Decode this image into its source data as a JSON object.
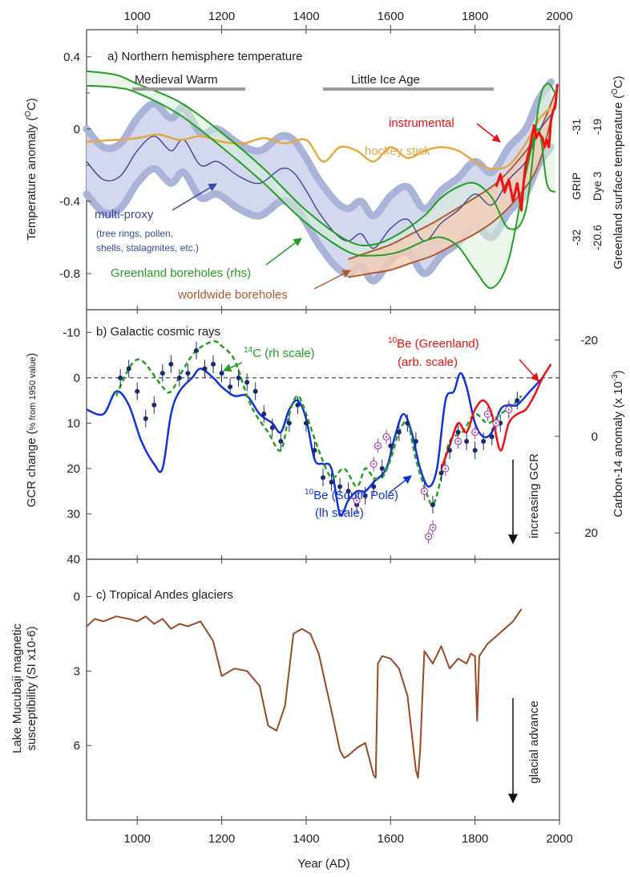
{
  "x_axis": {
    "ticks": [
      1000,
      1200,
      1400,
      1600,
      1800,
      2000
    ],
    "xlim": [
      880,
      2000
    ],
    "label": "Year (AD)"
  },
  "colors": {
    "multiproxy": "#3a4a9a",
    "multiproxy_band_outer": "#aab3d8",
    "multiproxy_band_inner": "#d3d8ee",
    "hockey": "#e8a840",
    "greenland": "#22a022",
    "worldwide": "#b05a30",
    "instrumental": "#ee1111",
    "be10_south_pole": "#1133dd",
    "c14": "#22a022",
    "be10_greenland": "#ee1111",
    "gcr_points": "#1a2a6a",
    "andes": "#9a4a22",
    "circle_points": "#aa44aa"
  },
  "chart_data": [
    {
      "type": "line",
      "title": "a) Northern hemisphere temperature",
      "ylabel": "Temperature anomaly (°C)",
      "ylabel_parts": [
        "Temperature anomaly (",
        "O",
        "C)"
      ],
      "ylim": [
        -1.0,
        0.55
      ],
      "yticks": [
        "0.4",
        "0",
        "-0.4",
        "-0.8"
      ],
      "right_label": "Greenland surface temperature (°C)",
      "right_label_parts": [
        "Greenland surface temperature (",
        "O",
        "C)"
      ],
      "right_ticks": {
        "grip": {
          "label": "GRIP",
          "values": [
            "-31",
            "-32"
          ]
        },
        "dye3": {
          "label": "Dye 3",
          "values": [
            "-19",
            "-20.6"
          ]
        }
      },
      "periods": [
        {
          "label": "Medieval Warm",
          "start": 1000,
          "end": 1270
        },
        {
          "label": "Little Ice Age",
          "start": 1450,
          "end": 1850
        }
      ],
      "annotations": {
        "instrumental": "instrumental",
        "hockey": "hockey stick",
        "multiproxy": [
          "multi-proxy",
          "(tree rings, pollen,",
          "shells, stalagmites, etc.)"
        ],
        "greenland": "Greenland boreholes (rhs)",
        "worldwide": "worldwide boreholes"
      },
      "series": [
        {
          "name": "multi-proxy",
          "x": [
            880,
            920,
            960,
            1000,
            1040,
            1080,
            1110,
            1150,
            1190,
            1240,
            1290,
            1340,
            1370,
            1400,
            1430,
            1470,
            1500,
            1530,
            1560,
            1600,
            1640,
            1680,
            1720,
            1760,
            1800,
            1840,
            1880,
            1920,
            1950,
            1980
          ],
          "y": [
            -0.18,
            -0.28,
            -0.26,
            -0.12,
            -0.04,
            -0.12,
            -0.06,
            -0.2,
            -0.18,
            -0.26,
            -0.3,
            -0.22,
            -0.24,
            -0.34,
            -0.46,
            -0.58,
            -0.62,
            -0.58,
            -0.66,
            -0.55,
            -0.5,
            -0.62,
            -0.52,
            -0.45,
            -0.36,
            -0.42,
            -0.28,
            -0.18,
            -0.02,
            0.08
          ]
        },
        {
          "name": "multi-proxy band half-width",
          "y": [
            0.18
          ]
        },
        {
          "name": "hockey stick",
          "x": [
            880,
            950,
            1000,
            1050,
            1100,
            1150,
            1200,
            1250,
            1300,
            1350,
            1400,
            1440,
            1480,
            1520,
            1560,
            1600,
            1640,
            1680,
            1720,
            1760,
            1800,
            1840,
            1880,
            1920,
            1950,
            1980
          ],
          "y": [
            -0.07,
            -0.06,
            -0.05,
            -0.03,
            -0.06,
            -0.04,
            -0.07,
            -0.08,
            -0.05,
            -0.08,
            -0.06,
            -0.18,
            -0.1,
            -0.12,
            -0.18,
            -0.1,
            -0.16,
            -0.12,
            -0.1,
            -0.12,
            -0.18,
            -0.22,
            -0.2,
            -0.08,
            0.05,
            0.12
          ]
        },
        {
          "name": "Greenland boreholes upper",
          "x": [
            880,
            950,
            1000,
            1100,
            1200,
            1300,
            1400,
            1500,
            1560,
            1620,
            1680,
            1720,
            1760,
            1800,
            1840,
            1880,
            1920,
            1950,
            1970,
            1990
          ],
          "y": [
            0.32,
            0.3,
            0.25,
            0.15,
            -0.02,
            -0.22,
            -0.45,
            -0.62,
            -0.64,
            -0.58,
            -0.48,
            -0.38,
            -0.32,
            -0.3,
            -0.38,
            -0.55,
            -0.45,
            0.12,
            0.25,
            0.2
          ]
        },
        {
          "name": "Greenland boreholes lower",
          "x": [
            880,
            950,
            1000,
            1100,
            1200,
            1300,
            1400,
            1500,
            1560,
            1620,
            1680,
            1720,
            1760,
            1800,
            1840,
            1880,
            1920,
            1950,
            1970,
            1990
          ],
          "y": [
            0.24,
            0.23,
            0.2,
            0.08,
            -0.1,
            -0.3,
            -0.52,
            -0.68,
            -0.7,
            -0.68,
            -0.62,
            -0.6,
            -0.65,
            -0.78,
            -0.88,
            -0.72,
            -0.25,
            0.0,
            -0.3,
            -0.35
          ]
        },
        {
          "name": "worldwide boreholes upper",
          "x": [
            1500,
            1550,
            1600,
            1650,
            1700,
            1750,
            1800,
            1850,
            1900,
            1950,
            1990
          ],
          "y": [
            -0.72,
            -0.68,
            -0.64,
            -0.58,
            -0.52,
            -0.45,
            -0.38,
            -0.3,
            -0.18,
            -0.02,
            0.2
          ]
        },
        {
          "name": "worldwide boreholes lower",
          "x": [
            1500,
            1550,
            1600,
            1650,
            1700,
            1750,
            1800,
            1850,
            1900,
            1950,
            1990
          ],
          "y": [
            -0.82,
            -0.8,
            -0.78,
            -0.74,
            -0.7,
            -0.64,
            -0.58,
            -0.5,
            -0.38,
            -0.2,
            0.15
          ]
        },
        {
          "name": "instrumental",
          "x": [
            1850,
            1860,
            1870,
            1880,
            1890,
            1900,
            1910,
            1915,
            1920,
            1930,
            1940,
            1945,
            1950,
            1960,
            1965,
            1970,
            1975,
            1980,
            1985,
            1990,
            1995
          ],
          "y": [
            -0.32,
            -0.25,
            -0.35,
            -0.28,
            -0.4,
            -0.3,
            -0.45,
            -0.3,
            -0.2,
            -0.1,
            0.02,
            -0.05,
            -0.02,
            -0.05,
            -0.1,
            -0.06,
            -0.1,
            0.05,
            0.1,
            0.12,
            0.25
          ]
        }
      ]
    },
    {
      "type": "line",
      "title": "b) Galactic cosmic rays",
      "ylabel": "GCR change (% from 1950 value)",
      "ylabel_main": "GCR change (",
      "ylabel_small": "% from 1950 value",
      "ylabel_close": ")",
      "ylim": [
        -15,
        40
      ],
      "yticks": [
        "-10",
        "0",
        "10",
        "20",
        "30",
        "40"
      ],
      "right_label": "Carbon-14 anomaly (x 10⁻³)",
      "right_label_parts": [
        "Carbon-14 anomaly (x 10",
        "-3",
        ")"
      ],
      "right_ticks": [
        "-20",
        "0",
        "20"
      ],
      "annotations": {
        "c14_sup": "14",
        "c14": "C (rh scale)",
        "be_greenland_sup": "10",
        "be_greenland": [
          "Be (Greenland)",
          "(arb. scale)"
        ],
        "be_south_sup": "10",
        "be_south": [
          "Be (South Pole)",
          "(lh scale)"
        ],
        "increasing": "increasing GCR"
      },
      "series": [
        {
          "name": "10Be (South Pole)",
          "x": [
            880,
            920,
            950,
            980,
            1010,
            1040,
            1060,
            1080,
            1100,
            1130,
            1150,
            1180,
            1200,
            1230,
            1260,
            1290,
            1320,
            1340,
            1360,
            1380,
            1400,
            1420,
            1440,
            1460,
            1480,
            1500,
            1520,
            1540,
            1560,
            1590,
            1610,
            1630,
            1650,
            1670,
            1690,
            1710,
            1730,
            1750,
            1765,
            1780,
            1800,
            1820,
            1840,
            1860,
            1880,
            1900,
            1930,
            1960
          ],
          "y": [
            7,
            8,
            3,
            6,
            14,
            19,
            20,
            8,
            3,
            0,
            -2,
            0,
            2,
            4,
            4,
            8,
            10,
            12,
            7,
            5,
            9,
            18,
            19,
            20,
            30,
            27,
            25,
            25,
            23,
            20,
            13,
            8,
            12,
            20,
            24,
            20,
            5,
            3,
            -1,
            2,
            10,
            13,
            12,
            7,
            6,
            6,
            3,
            0
          ]
        },
        {
          "name": "14C",
          "x": [
            950,
            980,
            1000,
            1020,
            1060,
            1080,
            1110,
            1140,
            1180,
            1200,
            1230,
            1260,
            1280,
            1310,
            1340,
            1360,
            1380,
            1400,
            1430,
            1460,
            1490,
            1520,
            1540,
            1560,
            1580,
            1600,
            1620,
            1640,
            1660,
            1680,
            1700,
            1720,
            1740,
            1770,
            1800,
            1830,
            1860,
            1890,
            1910
          ],
          "y": [
            4,
            -2,
            -4,
            -3,
            2,
            3,
            -2,
            -6,
            -8,
            -7,
            -4,
            4,
            8,
            12,
            16,
            8,
            4,
            8,
            16,
            22,
            20,
            24,
            20,
            22,
            22,
            18,
            12,
            10,
            18,
            24,
            28,
            22,
            14,
            12,
            8,
            10,
            8,
            6,
            4
          ]
        },
        {
          "name": "10Be (Greenland)",
          "x": [
            1720,
            1740,
            1760,
            1780,
            1800,
            1820,
            1840,
            1860,
            1880,
            1900,
            1920,
            1940,
            1960,
            1980
          ],
          "y": [
            20,
            15,
            10,
            12,
            7,
            5,
            8,
            16,
            10,
            8,
            7,
            4,
            0,
            -3
          ]
        },
        {
          "name": "GCR points",
          "x": [
            960,
            980,
            1000,
            1020,
            1040,
            1060,
            1080,
            1100,
            1120,
            1140,
            1160,
            1180,
            1200,
            1220,
            1240,
            1260,
            1280,
            1300,
            1320,
            1340,
            1360,
            1380,
            1400,
            1420,
            1440,
            1460,
            1480,
            1500,
            1520,
            1540,
            1560,
            1580,
            1600,
            1620,
            1640,
            1660,
            1680,
            1700,
            1720,
            1740,
            1760,
            1780,
            1800,
            1820,
            1840,
            1860,
            1880,
            1900
          ],
          "y": [
            0,
            -2,
            3,
            9,
            6,
            -1,
            -3,
            0,
            -1,
            -6,
            -2,
            -3,
            -1,
            2,
            0,
            1,
            3,
            8,
            11,
            14,
            10,
            6,
            10,
            16,
            22,
            23,
            24,
            25,
            28,
            26,
            24,
            20,
            15,
            12,
            10,
            14,
            25,
            28,
            21,
            16,
            12,
            14,
            16,
            14,
            13,
            10,
            7,
            5
          ]
        },
        {
          "name": "circle points",
          "x": [
            1520,
            1560,
            1570,
            1590,
            1680,
            1690,
            1700,
            1730,
            1760,
            1800,
            1830,
            1850,
            1880
          ],
          "y": [
            27,
            19,
            15,
            13,
            25,
            35,
            33,
            20,
            14,
            12,
            8,
            10,
            7
          ]
        }
      ]
    },
    {
      "type": "line",
      "title": "c) Tropical Andes glaciers",
      "ylabel": "Lake Mucubaji magnetic susceptibility (SI x10-6)",
      "ylabel_lines": [
        "Lake Mucubaji magnetic",
        "susceptibility (SI x10-6)"
      ],
      "ylim": [
        -1.5,
        9
      ],
      "yticks": [
        "0",
        "3",
        "6"
      ],
      "annotations": {
        "advance": "glacial advance"
      },
      "series": [
        {
          "name": "Lake Mucubaji",
          "x": [
            880,
            900,
            920,
            950,
            980,
            1000,
            1020,
            1040,
            1060,
            1080,
            1100,
            1120,
            1150,
            1180,
            1200,
            1230,
            1260,
            1290,
            1310,
            1330,
            1350,
            1370,
            1390,
            1410,
            1430,
            1460,
            1480,
            1490,
            1500,
            1520,
            1540,
            1560,
            1565,
            1570,
            1580,
            1600,
            1620,
            1640,
            1660,
            1665,
            1670,
            1680,
            1700,
            1720,
            1740,
            1760,
            1780,
            1790,
            1800,
            1805,
            1810,
            1830,
            1850,
            1870,
            1890,
            1910
          ],
          "y": [
            1.2,
            0.9,
            1.0,
            0.8,
            0.9,
            1.0,
            0.8,
            1.1,
            0.9,
            1.3,
            1.1,
            1.2,
            1.0,
            1.8,
            3.2,
            2.9,
            3.0,
            3.6,
            5.2,
            5.4,
            4.4,
            1.5,
            1.3,
            1.5,
            2.3,
            4.6,
            6.2,
            6.5,
            6.4,
            6.1,
            5.9,
            7.2,
            7.3,
            2.7,
            2.4,
            2.5,
            2.9,
            4.0,
            7.0,
            7.3,
            6.2,
            2.2,
            2.7,
            2.0,
            2.9,
            2.5,
            2.7,
            2.3,
            2.4,
            5.0,
            2.4,
            1.9,
            1.6,
            1.3,
            1.0,
            0.5
          ]
        }
      ]
    }
  ]
}
